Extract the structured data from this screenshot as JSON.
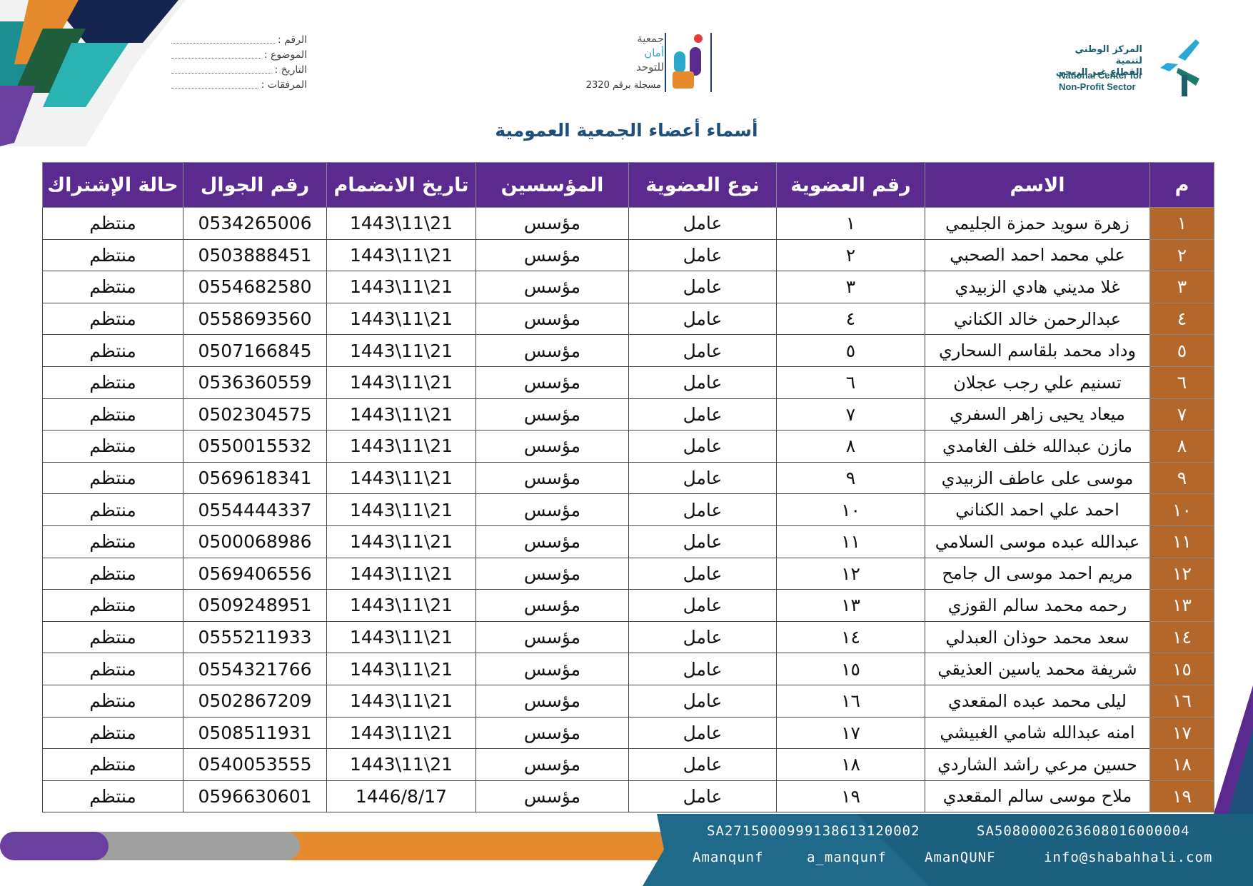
{
  "header": {
    "fields": [
      "الرقم :",
      "الموضوع :",
      "التاريخ :",
      "المرفقات :"
    ],
    "association": {
      "name_lines": [
        "جمعية",
        "أمان",
        "للتوحد"
      ],
      "registration": "مسجلة برقم 2320"
    },
    "center": {
      "arabic_lines": [
        "المركز الوطني لتنمية",
        "القطاع غير الربحي"
      ],
      "english_lines": [
        "National Center for",
        "Non-Profit Sector"
      ]
    }
  },
  "title": "أسماء أعضاء الجمعية العمومية",
  "table": {
    "columns": [
      "م",
      "الاسم",
      "رقم العضوية",
      "نوع العضوية",
      "المؤسسين",
      "تاريخ الانضمام",
      "رقم الجوال",
      "حالة الإشتراك"
    ],
    "rows": [
      [
        "١",
        "زهرة سويد حمزة الجليمي",
        "١",
        "عامل",
        "مؤسس",
        "1443\\11\\21",
        "0534265006",
        "منتظم"
      ],
      [
        "٢",
        "علي محمد احمد الصحبي",
        "٢",
        "عامل",
        "مؤسس",
        "1443\\11\\21",
        "0503888451",
        "منتظم"
      ],
      [
        "٣",
        "غلا مديني هادي الزبيدي",
        "٣",
        "عامل",
        "مؤسس",
        "1443\\11\\21",
        "0554682580",
        "منتظم"
      ],
      [
        "٤",
        "عبدالرحمن خالد الكناني",
        "٤",
        "عامل",
        "مؤسس",
        "1443\\11\\21",
        "0558693560",
        "منتظم"
      ],
      [
        "٥",
        "وداد محمد بلقاسم السحاري",
        "٥",
        "عامل",
        "مؤسس",
        "1443\\11\\21",
        "0507166845",
        "منتظم"
      ],
      [
        "٦",
        "تسنيم علي رجب عجلان",
        "٦",
        "عامل",
        "مؤسس",
        "1443\\11\\21",
        "0536360559",
        "منتظم"
      ],
      [
        "٧",
        "ميعاد يحيى زاهر السفري",
        "٧",
        "عامل",
        "مؤسس",
        "1443\\11\\21",
        "0502304575",
        "منتظم"
      ],
      [
        "٨",
        "مازن عبدالله خلف الغامدي",
        "٨",
        "عامل",
        "مؤسس",
        "1443\\11\\21",
        "0550015532",
        "منتظم"
      ],
      [
        "٩",
        "موسى على عاطف الزبيدي",
        "٩",
        "عامل",
        "مؤسس",
        "1443\\11\\21",
        "0569618341",
        "منتظم"
      ],
      [
        "١٠",
        "احمد علي احمد الكناني",
        "١٠",
        "عامل",
        "مؤسس",
        "1443\\11\\21",
        "0554444337",
        "منتظم"
      ],
      [
        "١١",
        "عبدالله عبده موسى السلامي",
        "١١",
        "عامل",
        "مؤسس",
        "1443\\11\\21",
        "0500068986",
        "منتظم"
      ],
      [
        "١٢",
        "مريم احمد موسى ال جامح",
        "١٢",
        "عامل",
        "مؤسس",
        "1443\\11\\21",
        "0569406556",
        "منتظم"
      ],
      [
        "١٣",
        "رحمه محمد سالم القوزي",
        "١٣",
        "عامل",
        "مؤسس",
        "1443\\11\\21",
        "0509248951",
        "منتظم"
      ],
      [
        "١٤",
        "سعد محمد حوذان العبدلي",
        "١٤",
        "عامل",
        "مؤسس",
        "1443\\11\\21",
        "0555211933",
        "منتظم"
      ],
      [
        "١٥",
        "شريفة محمد ياسين العذيقي",
        "١٥",
        "عامل",
        "مؤسس",
        "1443\\11\\21",
        "0554321766",
        "منتظم"
      ],
      [
        "١٦",
        "ليلى محمد عبده المقعدي",
        "١٦",
        "عامل",
        "مؤسس",
        "1443\\11\\21",
        "0502867209",
        "منتظم"
      ],
      [
        "١٧",
        "امنه عبدالله شامي الغبيشي",
        "١٧",
        "عامل",
        "مؤسس",
        "1443\\11\\21",
        "0508511931",
        "منتظم"
      ],
      [
        "١٨",
        "حسين مرعي راشد الشاردي",
        "١٨",
        "عامل",
        "مؤسس",
        "1443\\11\\21",
        "0540053555",
        "منتظم"
      ],
      [
        "١٩",
        "ملاح موسى سالم المقعدي",
        "١٩",
        "عامل",
        "مؤسس",
        "1446/8/17",
        "0596630601",
        "منتظم"
      ]
    ]
  },
  "footer": {
    "accounts": [
      "SA2715000999138613120002",
      "SA5080000263608016000004"
    ],
    "contacts": [
      "Amanqunf",
      "a_manqunf",
      "AmanQUNF",
      "info@shabahhali.com"
    ]
  }
}
